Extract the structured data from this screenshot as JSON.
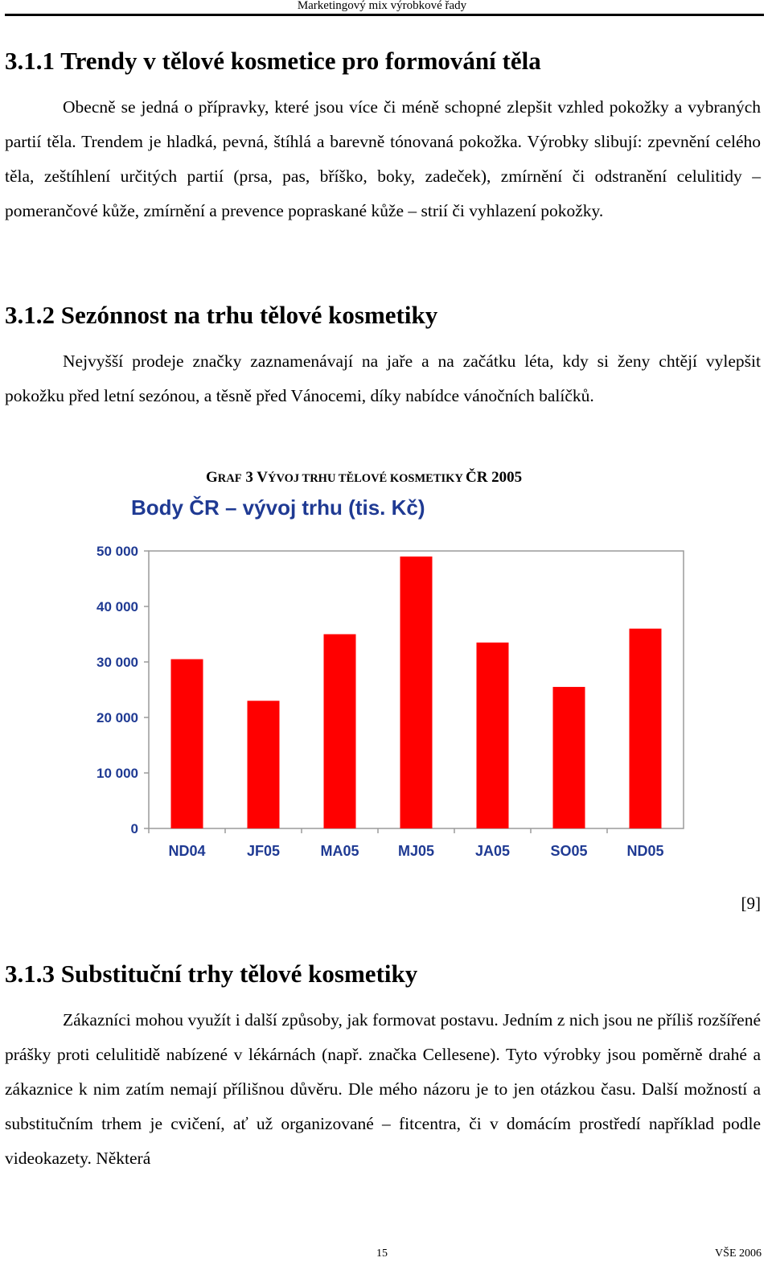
{
  "header": {
    "running_title": "Marketingový mix výrobkové řady"
  },
  "sections": [
    {
      "heading": "3.1.1 Trendy v tělové kosmetice pro formování těla",
      "paragraph": "Obecně se jedná o přípravky, které jsou více či méně schopné zlepšit vzhled pokožky a vybraných partií těla. Trendem je hladká, pevná, štíhlá a barevně tónovaná pokožka. Výrobky slibují: zpevnění celého těla, zeštíhlení určitých partií (prsa, pas, bříško, boky, zadeček), zmírnění či odstranění celulitidy – pomerančové kůže, zmírnění a prevence popraskané kůže – strií či vyhlazení pokožky."
    },
    {
      "heading": "3.1.2 Sezónnost na trhu tělové kosmetiky",
      "paragraph": "Nejvyšší prodeje značky zaznamenávají na jaře a na začátku léta, kdy si ženy chtějí vylepšit pokožku před letní sezónou, a těsně před Vánocemi, díky nabídce vánočních balíčků."
    },
    {
      "heading": "3.1.3 Substituční trhy tělové kosmetiky",
      "paragraph": "Zákazníci mohou využít i další způsoby, jak formovat postavu. Jedním z nich jsou ne příliš rozšířené prášky proti celulitidě nabízené v lékárnách (např. značka Cellesene). Tyto výrobky jsou poměrně drahé a zákaznice k nim zatím nemají přílišnou důvěru. Dle mého názoru je to jen otázkou času. Další možností a substitučním trhem je cvičení, ať už organizované – fitcentra, či v domácím prostředí například podle videokazety. Některá"
    }
  ],
  "figure": {
    "caption_prefix": "G",
    "caption_prefix_sc": "RAF",
    "caption_number": " 3 V",
    "caption_v_sc": "ÝVOJ TRHU TĚLOVÉ KOSMETIKY ",
    "caption_cr": "ČR 2005",
    "citation": "[9]"
  },
  "chart_data": {
    "type": "bar",
    "title": "Body ČR – vývoj trhu (tis. Kč)",
    "categories": [
      "ND04",
      "JF05",
      "MA05",
      "MJ05",
      "JA05",
      "SO05",
      "ND05"
    ],
    "values": [
      30500,
      23000,
      35000,
      49000,
      33500,
      25500,
      36000
    ],
    "ylim": [
      0,
      50000
    ],
    "yticks": [
      0,
      10000,
      20000,
      30000,
      40000,
      50000
    ],
    "ytick_labels": [
      "0",
      "10 000",
      "20 000",
      "30 000",
      "40 000",
      "50 000"
    ],
    "xlabel": "",
    "ylabel": "",
    "grid": false,
    "colors": {
      "bar": "#ff0000",
      "text": "#1f3a93",
      "axis": "#9a9a9a"
    }
  },
  "footer": {
    "page_number": "15",
    "right_text": "VŠE 2006"
  }
}
